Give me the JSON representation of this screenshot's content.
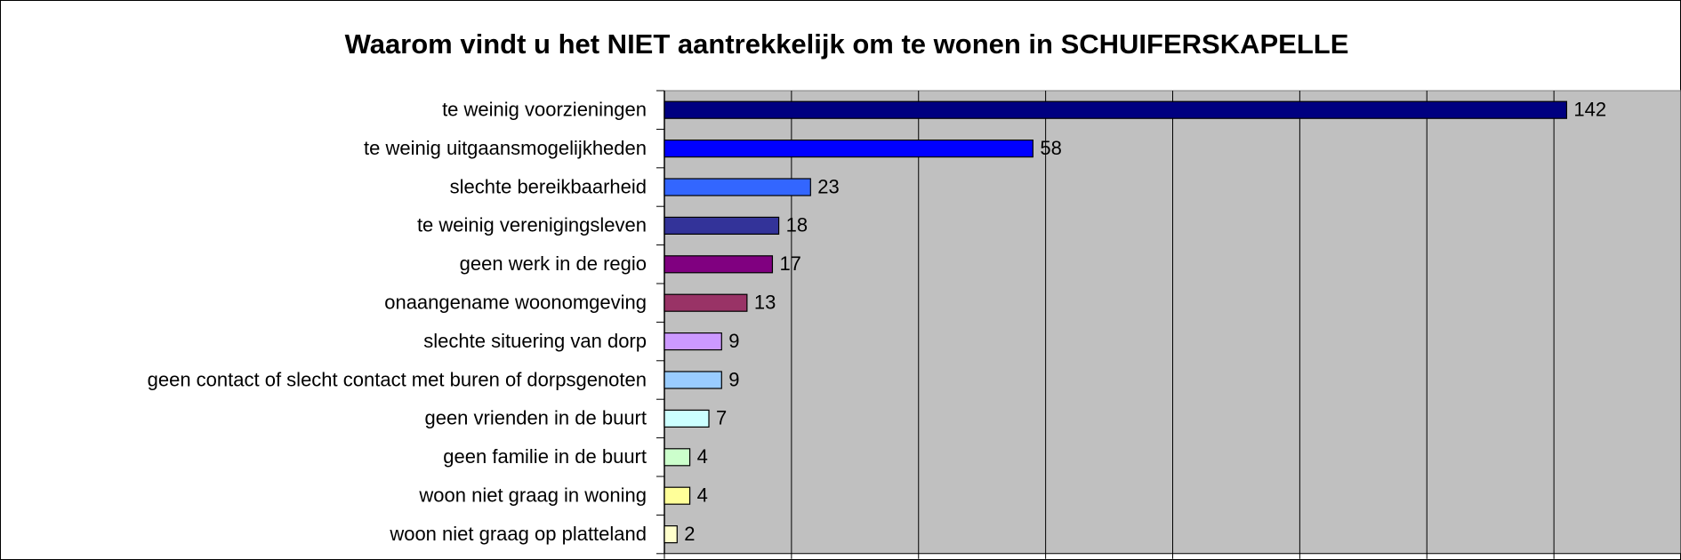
{
  "chart_data": {
    "type": "barh",
    "title": "Waarom vindt u het NIET aantrekkelijk om te wonen in SCHUIFERSKAPELLE",
    "categories": [
      "te weinig voorzieningen",
      "te weinig uitgaansmogelijkheden",
      "slechte bereikbaarheid",
      "te weinig verenigingsleven",
      "geen werk in de regio",
      "onaangename woonomgeving",
      "slechte situering van dorp",
      "geen contact of slecht contact met buren of dorpsgenoten",
      "geen vrienden in de buurt",
      "geen familie in de buurt",
      "woon niet graag in woning",
      "woon niet graag op platteland"
    ],
    "values": [
      142,
      58,
      23,
      18,
      17,
      13,
      9,
      9,
      7,
      4,
      4,
      2
    ],
    "colors": [
      "#000080",
      "#0000ff",
      "#3366ff",
      "#333399",
      "#800080",
      "#993366",
      "#cc99ff",
      "#99ccff",
      "#ccffff",
      "#ccffcc",
      "#ffff99",
      "#ffffcc"
    ],
    "xlim": [
      0,
      160
    ],
    "xticks": [
      0,
      20,
      40,
      60,
      80,
      100,
      120,
      140,
      160
    ],
    "grid": true
  }
}
